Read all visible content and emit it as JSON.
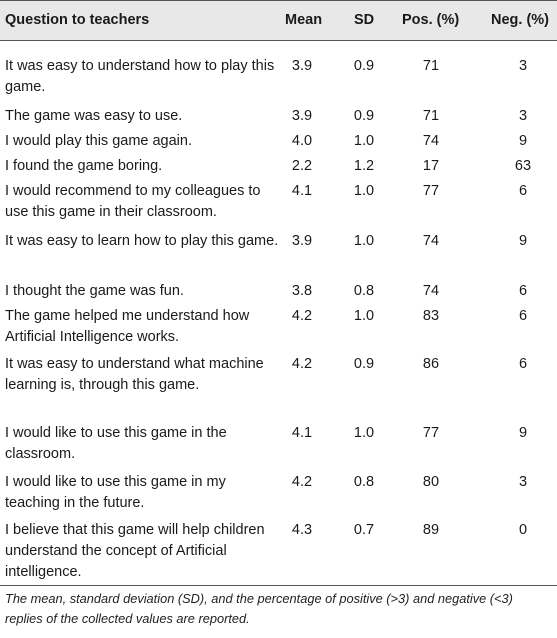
{
  "table": {
    "headers": {
      "question": "Question to teachers",
      "mean": "Mean",
      "sd": "SD",
      "pos": "Pos. (%)",
      "neg": "Neg. (%)"
    },
    "rows": [
      {
        "question": "It was easy to understand how to play this game.",
        "mean": "3.9",
        "sd": "0.9",
        "pos": "71",
        "neg": "3"
      },
      {
        "question": "The game was easy to use.",
        "mean": "3.9",
        "sd": "0.9",
        "pos": "71",
        "neg": "3"
      },
      {
        "question": "I would play this game again.",
        "mean": "4.0",
        "sd": "1.0",
        "pos": "74",
        "neg": "9"
      },
      {
        "question": "I found the game boring.",
        "mean": "2.2",
        "sd": "1.2",
        "pos": "17",
        "neg": "63"
      },
      {
        "question": "I would recommend to my colleagues to use this game in their classroom.",
        "mean": "4.1",
        "sd": "1.0",
        "pos": "77",
        "neg": "6"
      },
      {
        "question": "It was easy to learn how to play this game.",
        "mean": "3.9",
        "sd": "1.0",
        "pos": "74",
        "neg": "9"
      },
      {
        "question": "I thought the game was fun.",
        "mean": "3.8",
        "sd": "0.8",
        "pos": "74",
        "neg": "6"
      },
      {
        "question": "The game helped me understand how Artificial Intelligence works.",
        "mean": "4.2",
        "sd": "1.0",
        "pos": "83",
        "neg": "6"
      },
      {
        "question": "It was easy to understand what machine learning is, through this game.",
        "mean": "4.2",
        "sd": "0.9",
        "pos": "86",
        "neg": "6"
      },
      {
        "question": "I would like to use this game in the classroom.",
        "mean": "4.1",
        "sd": "1.0",
        "pos": "77",
        "neg": "9"
      },
      {
        "question": "I would like to use this game in my teaching in the future.",
        "mean": "4.2",
        "sd": "0.8",
        "pos": "80",
        "neg": "3"
      },
      {
        "question": "I believe that this game will help children understand the concept of Artificial intelligence.",
        "mean": "4.3",
        "sd": "0.7",
        "pos": "89",
        "neg": "0"
      }
    ],
    "footnote": "The mean, standard deviation (SD), and the percentage of positive (>3) and negative (<3) replies of the collected values are reported."
  }
}
